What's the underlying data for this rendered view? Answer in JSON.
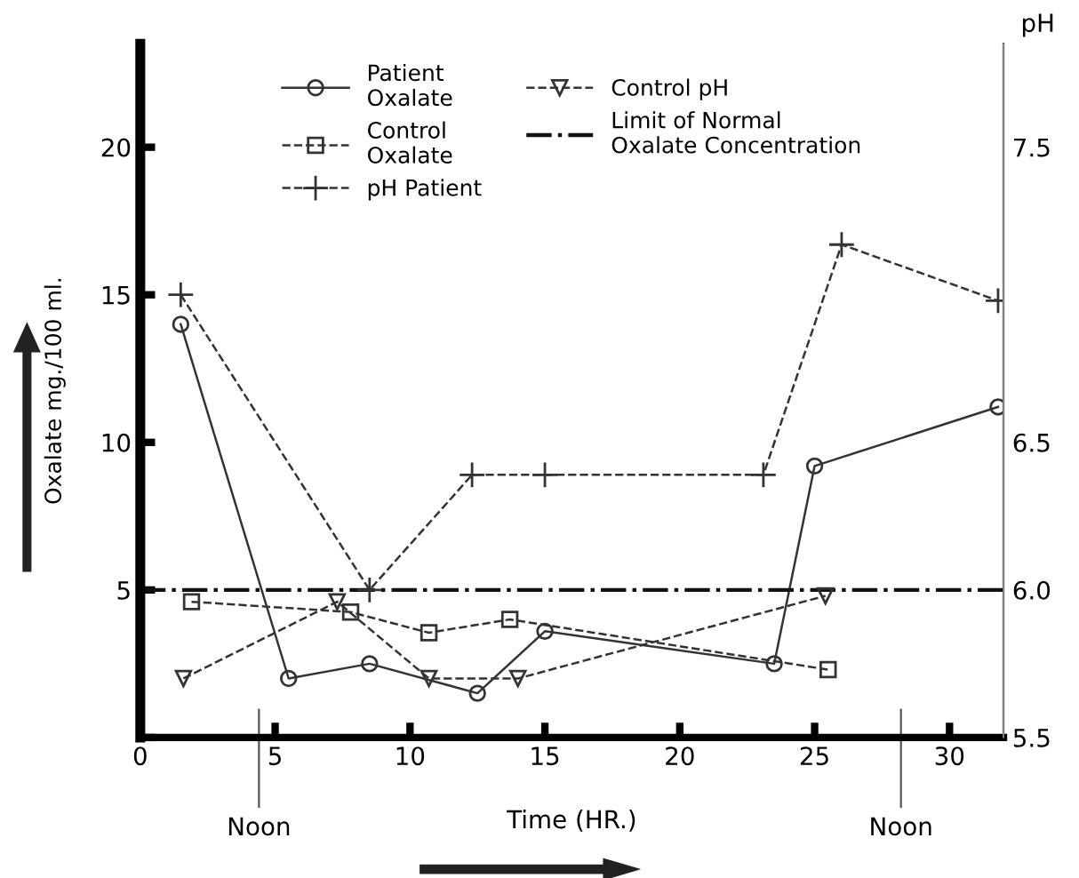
{
  "chart_data": {
    "type": "line",
    "xlabel": "Time (HR.)",
    "ylabel": "Oxalate mg./100 ml.",
    "y2label": "pH",
    "xlim": [
      0,
      32
    ],
    "xticks": [
      0,
      5,
      10,
      15,
      20,
      25,
      30
    ],
    "ylim": [
      0,
      23.5
    ],
    "yticks": [
      {
        "value": 0,
        "label": null
      },
      5,
      10,
      15,
      20
    ],
    "y2lim": [
      5.5,
      7.85
    ],
    "y2ticks": [
      5.5,
      {
        "value": 6.0,
        "label": "6.0"
      },
      6.5,
      {
        "value": 7.0,
        "label": null
      },
      7.5
    ],
    "legend": "top",
    "grid": false,
    "series": [
      {
        "name": "Patient\nOxalate",
        "color": "#333333",
        "marker": "circle",
        "line_style": "solid",
        "x": [
          1.5,
          5.5,
          8.5,
          12.5,
          15,
          23.5,
          25,
          31.8
        ],
        "values": [
          14.0,
          2.0,
          2.5,
          1.5,
          3.6,
          2.5,
          9.2,
          11.2
        ]
      },
      {
        "name": "Control\nOxalate",
        "color": "#333333",
        "marker": "square",
        "line_style": "dashed",
        "x": [
          1.9,
          7.8,
          10.7,
          13.7,
          25.5
        ],
        "values": [
          4.6,
          4.25,
          3.55,
          4.0,
          2.3
        ]
      },
      {
        "name": "pH Patient",
        "color": "#333333",
        "marker": "cross",
        "line_style": "dashed",
        "axis": "y2",
        "x": [
          1.5,
          8.5,
          12.3,
          15.0,
          23.1,
          26.0,
          31.8
        ],
        "values": [
          7.0,
          6.0,
          6.39,
          6.39,
          6.39,
          7.17,
          6.98
        ]
      },
      {
        "name": "Control pH",
        "color": "#333333",
        "marker": "triangle",
        "line_style": "dashed",
        "axis": "y2",
        "x": [
          1.6,
          7.3,
          10.7,
          14.0,
          25.4
        ],
        "values": [
          5.7,
          5.96,
          5.7,
          5.7,
          5.98
        ]
      }
    ],
    "ref_lines": [
      {
        "axis": "y",
        "value": 5,
        "label": "Limit of Normal\nOxalate Concentration",
        "color": "#111111",
        "line_style": "dashdot"
      },
      {
        "axis": "x",
        "value": 4.4,
        "label": "Noon",
        "color": "#555555",
        "line_style": "solid"
      },
      {
        "axis": "x",
        "value": 28.2,
        "label": "Noon",
        "color": "#555555",
        "line_style": "solid"
      }
    ]
  }
}
